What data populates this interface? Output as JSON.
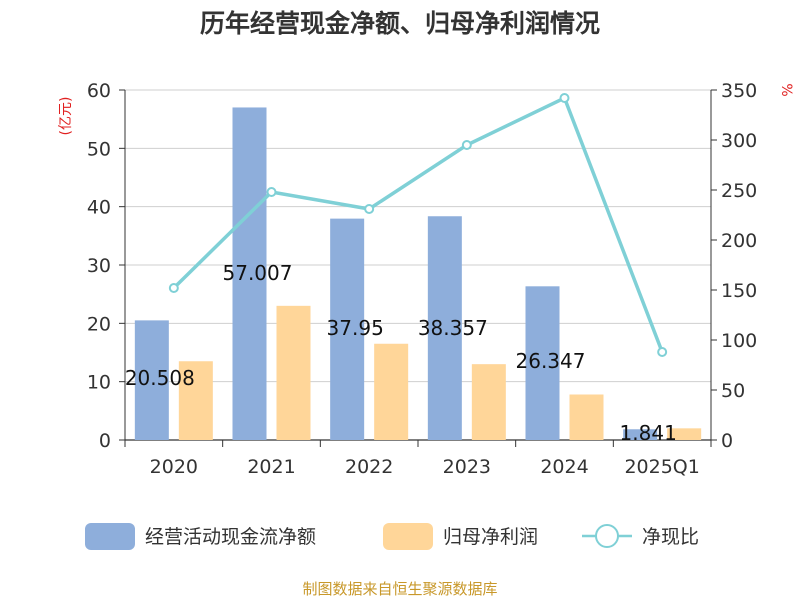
{
  "chart_data": {
    "type": "bar",
    "title": "历年经营现金净额、归母净利润情况",
    "categories": [
      "2020",
      "2021",
      "2022",
      "2023",
      "2024",
      "2025Q1"
    ],
    "series": [
      {
        "name": "经营活动现金流净额",
        "type": "bar",
        "axis": "left",
        "color": "#8eaedb",
        "values": [
          20.508,
          57.007,
          37.95,
          38.357,
          26.347,
          1.841
        ],
        "labels": [
          "20.508",
          "57.007",
          "37.95",
          "38.357",
          "26.347",
          "1.841"
        ]
      },
      {
        "name": "归母净利润",
        "type": "bar",
        "axis": "left",
        "color": "#ffd699",
        "values": [
          13.5,
          23.0,
          16.5,
          13.0,
          7.8,
          2.0
        ]
      },
      {
        "name": "净现比",
        "type": "line",
        "axis": "right",
        "color": "#7fd0d6",
        "values": [
          152,
          248,
          231,
          295,
          342,
          88
        ]
      }
    ],
    "y_left": {
      "unit": "(亿元)",
      "min": 0,
      "max": 60,
      "ticks": [
        0,
        10,
        20,
        30,
        40,
        50,
        60
      ]
    },
    "y_right": {
      "unit": "%",
      "min": 0,
      "max": 350,
      "ticks": [
        0,
        50,
        100,
        150,
        200,
        250,
        300,
        350
      ]
    },
    "grid": true,
    "legend_position": "bottom"
  },
  "source": "制图数据来自恒生聚源数据库"
}
